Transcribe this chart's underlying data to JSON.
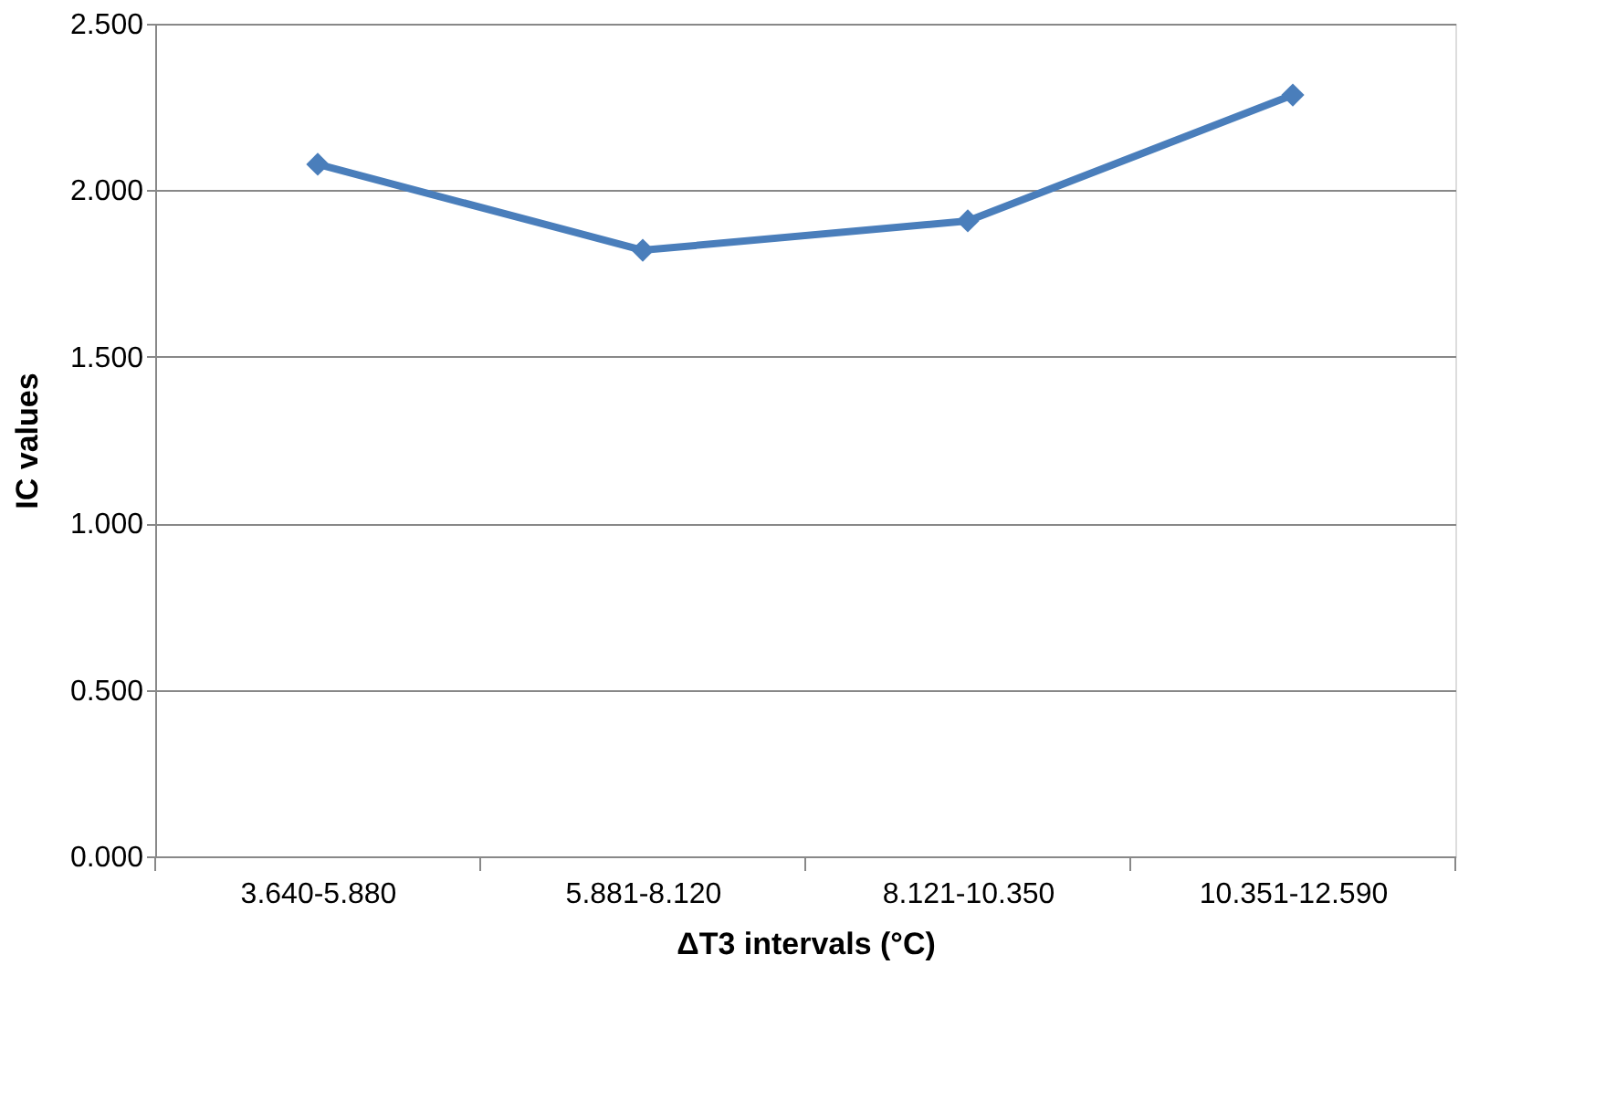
{
  "chart_data": {
    "type": "line",
    "xlabel": "ΔT3  intervals (°C)",
    "ylabel": "IC values",
    "categories": [
      "3.640-5.880",
      "5.881-8.120",
      "8.121-10.350",
      "10.351-12.590"
    ],
    "series": [
      {
        "color": "#4a7ebb",
        "values": [
          2.078,
          1.82,
          1.908,
          2.286
        ]
      }
    ],
    "ylim": [
      0,
      2.5
    ],
    "yticks": [
      {
        "value": 0,
        "label": "0.000"
      },
      {
        "value": 0.5,
        "label": "0.500"
      },
      {
        "value": 1,
        "label": "1.000"
      },
      {
        "value": 1.5,
        "label": "1.500"
      },
      {
        "value": 2,
        "label": "2.000"
      },
      {
        "value": 2.5,
        "label": "2.500"
      }
    ],
    "grid": "y",
    "marker": "diamond",
    "line_style": "solid",
    "legend": false
  }
}
